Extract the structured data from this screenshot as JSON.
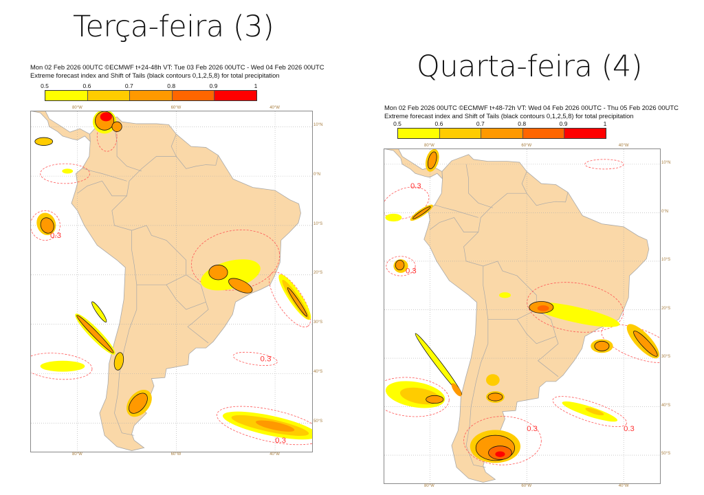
{
  "headings": {
    "left": "Terça-feira (3)",
    "right": "Quarta-feira (4)"
  },
  "colorbar": {
    "ticks": [
      "0.5",
      "0.6",
      "0.7",
      "0.8",
      "0.9",
      "1"
    ],
    "colors": [
      "#ffff00",
      "#ffcc00",
      "#ff9900",
      "#ff6600",
      "#ff0000"
    ]
  },
  "colors": {
    "land": "#fad8a8",
    "contour_03": "#ff5555",
    "border": "#a8a8a8",
    "grid_label": "#a57a3a"
  },
  "contour_label": "0.3",
  "grid": {
    "lon_labels": [
      "80°W",
      "60°W",
      "40°W"
    ],
    "lat_labels": [
      "10°N",
      "0°N",
      "10°S",
      "20°S",
      "30°S",
      "40°S",
      "50°S"
    ]
  },
  "maps": [
    {
      "title_line1": "Mon 02 Feb 2026 00UTC ©ECMWF t+24-48h  VT: Tue 03 Feb 2026 00UTC - Wed 04 Feb 2026 00UTC",
      "title_line2": "Extreme forecast index and Shift of Tails (black contours 0,1,2,5,8) for total precipitation"
    },
    {
      "title_line1": "Mon 02 Feb 2026 00UTC ©ECMWF t+48-72h  VT: Wed 04 Feb 2026 00UTC - Thu 05 Feb 2026 00UTC",
      "title_line2": "Extreme forecast index and Shift of Tails (black contours 0,1,2,5,8) for total precipitation"
    }
  ]
}
